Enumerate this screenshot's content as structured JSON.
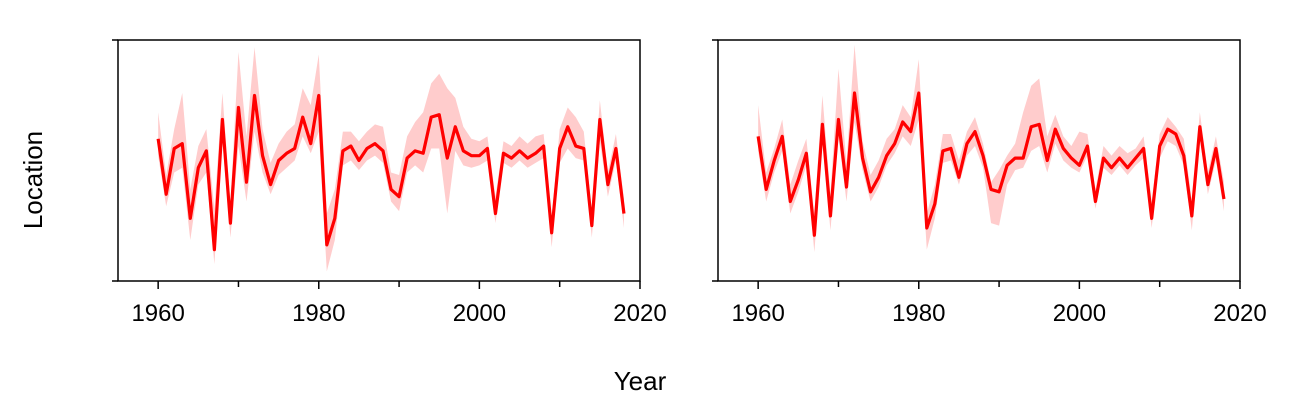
{
  "colors": {
    "line": "#ff0000",
    "band": "#ffcccc",
    "frame": "#000000"
  },
  "x_axis_label": "Year",
  "y_axis_label": "Location",
  "chart_data": [
    {
      "type": "line",
      "xlabel": "Year",
      "ylabel": "Location",
      "xlim": [
        1955,
        2020
      ],
      "ylim": [
        0,
        1
      ],
      "xticks": [
        "1960",
        "1980",
        "2000",
        "2020"
      ],
      "y_tick_labels_shown": false,
      "grid": false,
      "x": [
        1960,
        1961,
        1962,
        1963,
        1964,
        1965,
        1966,
        1967,
        1968,
        1969,
        1970,
        1971,
        1972,
        1973,
        1974,
        1975,
        1976,
        1977,
        1978,
        1979,
        1980,
        1981,
        1982,
        1983,
        1984,
        1985,
        1986,
        1987,
        1988,
        1989,
        1990,
        1991,
        1992,
        1993,
        1994,
        1995,
        1996,
        1997,
        1998,
        1999,
        2000,
        2001,
        2002,
        2003,
        2004,
        2005,
        2006,
        2007,
        2008,
        2009,
        2010,
        2011,
        2012,
        2013,
        2014,
        2015,
        2016,
        2017,
        2018
      ],
      "series": [
        {
          "values": [
            0.59,
            0.36,
            0.55,
            0.57,
            0.26,
            0.47,
            0.54,
            0.13,
            0.67,
            0.24,
            0.72,
            0.41,
            0.77,
            0.52,
            0.4,
            0.5,
            0.53,
            0.55,
            0.68,
            0.57,
            0.77,
            0.15,
            0.26,
            0.54,
            0.56,
            0.5,
            0.55,
            0.57,
            0.54,
            0.38,
            0.35,
            0.51,
            0.54,
            0.53,
            0.68,
            0.69,
            0.51,
            0.64,
            0.54,
            0.52,
            0.52,
            0.55,
            0.28,
            0.53,
            0.51,
            0.54,
            0.51,
            0.53,
            0.56,
            0.2,
            0.55,
            0.64,
            0.56,
            0.55,
            0.23,
            0.67,
            0.4,
            0.55,
            0.28
          ],
          "lower": [
            0.52,
            0.31,
            0.45,
            0.47,
            0.17,
            0.4,
            0.45,
            0.07,
            0.58,
            0.18,
            0.56,
            0.33,
            0.62,
            0.45,
            0.36,
            0.44,
            0.47,
            0.5,
            0.6,
            0.53,
            0.62,
            0.04,
            0.17,
            0.48,
            0.5,
            0.46,
            0.5,
            0.52,
            0.49,
            0.33,
            0.29,
            0.45,
            0.48,
            0.45,
            0.55,
            0.55,
            0.28,
            0.54,
            0.48,
            0.47,
            0.48,
            0.5,
            0.24,
            0.49,
            0.47,
            0.5,
            0.47,
            0.49,
            0.51,
            0.14,
            0.49,
            0.55,
            0.51,
            0.5,
            0.18,
            0.58,
            0.35,
            0.5,
            0.22
          ],
          "upper": [
            0.7,
            0.44,
            0.63,
            0.78,
            0.38,
            0.56,
            0.63,
            0.3,
            0.78,
            0.32,
            0.95,
            0.6,
            0.97,
            0.63,
            0.49,
            0.57,
            0.62,
            0.65,
            0.8,
            0.73,
            0.94,
            0.28,
            0.38,
            0.62,
            0.62,
            0.58,
            0.62,
            0.65,
            0.64,
            0.45,
            0.44,
            0.6,
            0.66,
            0.7,
            0.82,
            0.86,
            0.8,
            0.76,
            0.64,
            0.59,
            0.58,
            0.6,
            0.35,
            0.58,
            0.56,
            0.6,
            0.57,
            0.6,
            0.61,
            0.26,
            0.63,
            0.72,
            0.68,
            0.62,
            0.29,
            0.75,
            0.45,
            0.61,
            0.34
          ]
        }
      ]
    },
    {
      "type": "line",
      "xlabel": "Year",
      "ylabel": "Location",
      "xlim": [
        1955,
        2020
      ],
      "ylim": [
        0,
        1
      ],
      "xticks": [
        "1960",
        "1980",
        "2000",
        "2020"
      ],
      "y_tick_labels_shown": false,
      "grid": false,
      "x": [
        1960,
        1961,
        1962,
        1963,
        1964,
        1965,
        1966,
        1967,
        1968,
        1969,
        1970,
        1971,
        1972,
        1973,
        1974,
        1975,
        1976,
        1977,
        1978,
        1979,
        1980,
        1981,
        1982,
        1983,
        1984,
        1985,
        1986,
        1987,
        1988,
        1989,
        1990,
        1991,
        1992,
        1993,
        1994,
        1995,
        1996,
        1997,
        1998,
        1999,
        2000,
        2001,
        2002,
        2003,
        2004,
        2005,
        2006,
        2007,
        2008,
        2009,
        2010,
        2011,
        2012,
        2013,
        2014,
        2015,
        2016,
        2017,
        2018
      ],
      "series": [
        {
          "values": [
            0.6,
            0.38,
            0.5,
            0.6,
            0.33,
            0.42,
            0.53,
            0.19,
            0.65,
            0.27,
            0.67,
            0.39,
            0.78,
            0.51,
            0.37,
            0.43,
            0.52,
            0.57,
            0.66,
            0.62,
            0.78,
            0.22,
            0.32,
            0.54,
            0.55,
            0.43,
            0.57,
            0.62,
            0.52,
            0.38,
            0.37,
            0.48,
            0.51,
            0.51,
            0.64,
            0.65,
            0.5,
            0.63,
            0.55,
            0.51,
            0.48,
            0.56,
            0.33,
            0.51,
            0.47,
            0.51,
            0.47,
            0.51,
            0.55,
            0.26,
            0.56,
            0.63,
            0.61,
            0.52,
            0.27,
            0.64,
            0.4,
            0.55,
            0.34
          ],
          "lower": [
            0.54,
            0.33,
            0.45,
            0.54,
            0.28,
            0.37,
            0.48,
            0.12,
            0.58,
            0.21,
            0.6,
            0.33,
            0.66,
            0.46,
            0.33,
            0.39,
            0.48,
            0.53,
            0.6,
            0.56,
            0.67,
            0.13,
            0.26,
            0.49,
            0.5,
            0.4,
            0.52,
            0.56,
            0.47,
            0.24,
            0.23,
            0.4,
            0.46,
            0.47,
            0.54,
            0.56,
            0.45,
            0.57,
            0.5,
            0.47,
            0.45,
            0.52,
            0.3,
            0.47,
            0.44,
            0.48,
            0.44,
            0.48,
            0.51,
            0.22,
            0.51,
            0.58,
            0.56,
            0.48,
            0.21,
            0.59,
            0.36,
            0.5,
            0.29
          ],
          "upper": [
            0.73,
            0.45,
            0.55,
            0.67,
            0.4,
            0.5,
            0.59,
            0.28,
            0.77,
            0.36,
            0.88,
            0.49,
            0.98,
            0.58,
            0.44,
            0.5,
            0.59,
            0.63,
            0.73,
            0.68,
            0.92,
            0.28,
            0.4,
            0.61,
            0.61,
            0.5,
            0.62,
            0.68,
            0.57,
            0.41,
            0.46,
            0.52,
            0.57,
            0.7,
            0.81,
            0.84,
            0.6,
            0.69,
            0.6,
            0.56,
            0.62,
            0.61,
            0.38,
            0.56,
            0.52,
            0.56,
            0.53,
            0.55,
            0.6,
            0.33,
            0.61,
            0.68,
            0.64,
            0.59,
            0.33,
            0.7,
            0.45,
            0.6,
            0.41
          ]
        }
      ]
    }
  ]
}
